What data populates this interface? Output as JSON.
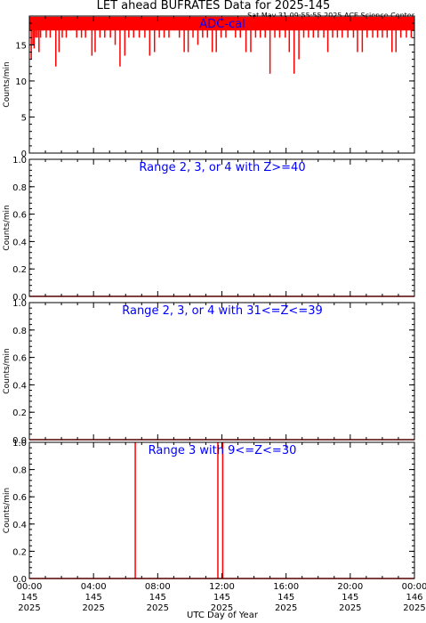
{
  "title": "LET ahead BUFRATES Data for 2025-145",
  "timestamp": "Sat May 31 09:55:55 2025 ACE Science Center",
  "xlabel": "UTC Day of Year",
  "colors": {
    "data": "#ff0000",
    "annotation": "#0000ff",
    "axes": "#000000"
  },
  "chart_data": [
    {
      "type": "line",
      "label": "ADC-cal",
      "ylabel": "Counts/min",
      "ylim": [
        0,
        19
      ],
      "yticks": [
        0,
        5,
        10,
        15
      ],
      "ytick_labels": [
        "0",
        "5",
        "10",
        "15"
      ],
      "xlim": [
        0,
        24
      ],
      "xticks": [
        0,
        4,
        8,
        12,
        16,
        20,
        24
      ],
      "xtick_labels": [
        [
          "00:00",
          "145",
          "2025"
        ],
        [
          "04:00",
          "145",
          "2025"
        ],
        [
          "08:00",
          "145",
          "2025"
        ],
        [
          "12:00",
          "145",
          "2025"
        ],
        [
          "16:00",
          "145",
          "2025"
        ],
        [
          "20:00",
          "145",
          "2025"
        ],
        [
          "00:00",
          "146",
          "2025"
        ]
      ],
      "baseline": 18,
      "band": [
        17,
        18.9
      ],
      "spikes": [
        [
          0.12,
          13
        ],
        [
          0.22,
          15
        ],
        [
          0.3,
          14.5
        ],
        [
          0.4,
          16
        ],
        [
          0.5,
          16
        ],
        [
          0.6,
          14
        ],
        [
          0.7,
          16
        ],
        [
          0.85,
          17
        ],
        [
          1.05,
          16
        ],
        [
          1.3,
          16
        ],
        [
          1.65,
          12
        ],
        [
          1.85,
          14
        ],
        [
          2.05,
          16
        ],
        [
          2.3,
          16
        ],
        [
          2.6,
          17
        ],
        [
          2.95,
          16
        ],
        [
          3.25,
          16
        ],
        [
          3.5,
          16
        ],
        [
          3.9,
          13.5
        ],
        [
          4.1,
          14
        ],
        [
          4.4,
          16
        ],
        [
          4.7,
          16
        ],
        [
          5.05,
          16
        ],
        [
          5.35,
          15
        ],
        [
          5.65,
          12
        ],
        [
          5.95,
          13.5
        ],
        [
          6.2,
          16
        ],
        [
          6.5,
          16
        ],
        [
          6.85,
          16
        ],
        [
          7.2,
          16
        ],
        [
          7.5,
          13.5
        ],
        [
          7.8,
          14
        ],
        [
          8.1,
          16
        ],
        [
          8.4,
          16
        ],
        [
          8.7,
          16
        ],
        [
          9.05,
          17
        ],
        [
          9.35,
          16
        ],
        [
          9.65,
          14
        ],
        [
          9.9,
          14
        ],
        [
          10.2,
          16
        ],
        [
          10.5,
          15
        ],
        [
          10.8,
          16
        ],
        [
          11.1,
          16
        ],
        [
          11.4,
          14
        ],
        [
          11.65,
          14
        ],
        [
          11.95,
          16
        ],
        [
          12.25,
          16
        ],
        [
          12.55,
          17
        ],
        [
          12.85,
          16
        ],
        [
          13.15,
          16
        ],
        [
          13.5,
          14
        ],
        [
          13.8,
          14
        ],
        [
          14.1,
          16
        ],
        [
          14.4,
          16
        ],
        [
          14.7,
          16
        ],
        [
          15.0,
          11
        ],
        [
          15.3,
          16
        ],
        [
          15.6,
          16
        ],
        [
          15.95,
          16
        ],
        [
          16.2,
          14
        ],
        [
          16.5,
          11
        ],
        [
          16.8,
          13
        ],
        [
          17.1,
          16
        ],
        [
          17.4,
          16
        ],
        [
          17.7,
          16
        ],
        [
          18.0,
          16
        ],
        [
          18.35,
          16
        ],
        [
          18.6,
          14
        ],
        [
          18.9,
          16
        ],
        [
          19.2,
          16
        ],
        [
          19.5,
          16
        ],
        [
          19.85,
          16
        ],
        [
          20.2,
          16
        ],
        [
          20.45,
          14
        ],
        [
          20.75,
          14
        ],
        [
          21.05,
          16
        ],
        [
          21.4,
          16
        ],
        [
          21.7,
          16
        ],
        [
          22.0,
          16
        ],
        [
          22.3,
          16
        ],
        [
          22.6,
          14
        ],
        [
          22.85,
          14
        ],
        [
          23.15,
          16
        ],
        [
          23.5,
          16
        ],
        [
          23.8,
          16
        ]
      ]
    },
    {
      "type": "line",
      "label": "Range 2, 3, or 4 with Z>=40",
      "ylabel": "Counts/min",
      "ylim": [
        0,
        1
      ],
      "yticks": [
        0,
        0.2,
        0.4,
        0.6,
        0.8,
        1.0
      ],
      "ytick_labels": [
        "0.0",
        "0.2",
        "0.4",
        "0.6",
        "0.8",
        "1.0"
      ],
      "xlim": [
        0,
        24
      ],
      "baseline": 0,
      "spikes": []
    },
    {
      "type": "line",
      "label": "Range 2, 3, or 4 with 31<=Z<=39",
      "ylabel": "Counts/min",
      "ylim": [
        0,
        1
      ],
      "yticks": [
        0,
        0.2,
        0.4,
        0.6,
        0.8,
        1.0
      ],
      "ytick_labels": [
        "0.0",
        "0.2",
        "0.4",
        "0.6",
        "0.8",
        "1.0"
      ],
      "xlim": [
        0,
        24
      ],
      "baseline": 0,
      "spikes": []
    },
    {
      "type": "line",
      "label": "Range 3 with 9<=Z<=30",
      "ylabel": "Counts/min",
      "ylim": [
        0,
        1
      ],
      "yticks": [
        0,
        0.2,
        0.4,
        0.6,
        0.8,
        1.0
      ],
      "ytick_labels": [
        "0.0",
        "0.2",
        "0.4",
        "0.6",
        "0.8",
        "1.0"
      ],
      "xlim": [
        0,
        24
      ],
      "baseline": 0,
      "spikes": [
        [
          6.6,
          1.0
        ],
        [
          11.75,
          1.0
        ],
        [
          12.05,
          1.0
        ]
      ]
    }
  ]
}
